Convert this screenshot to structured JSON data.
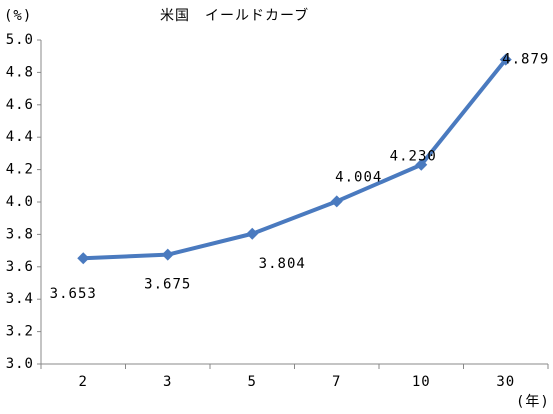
{
  "chart_data": {
    "type": "line",
    "title": "米国　イールドカーブ",
    "y_label": "(%)",
    "x_label": "(年)",
    "categories": [
      "2",
      "3",
      "5",
      "7",
      "10",
      "30"
    ],
    "values": [
      3.653,
      3.675,
      3.804,
      4.004,
      4.23,
      4.879
    ],
    "value_labels": [
      "3.653",
      "3.675",
      "3.804",
      "4.004",
      "4.230",
      "4.879"
    ],
    "color": "#4a7abf",
    "ylim": [
      3.0,
      5.0
    ],
    "yticks": [
      {
        "value": 3.0,
        "label": "3.0"
      },
      {
        "value": 3.2,
        "label": "3.2"
      },
      {
        "value": 3.4,
        "label": "3.4"
      },
      {
        "value": 3.6,
        "label": "3.6"
      },
      {
        "value": 3.8,
        "label": "3.8"
      },
      {
        "value": 4.0,
        "label": "4.0"
      },
      {
        "value": 4.2,
        "label": "4.2"
      },
      {
        "value": 4.4,
        "label": "4.4"
      },
      {
        "value": 4.6,
        "label": "4.6"
      },
      {
        "value": 4.8,
        "label": "4.8"
      },
      {
        "value": 5.0,
        "label": "5.0"
      }
    ],
    "grid": false
  }
}
